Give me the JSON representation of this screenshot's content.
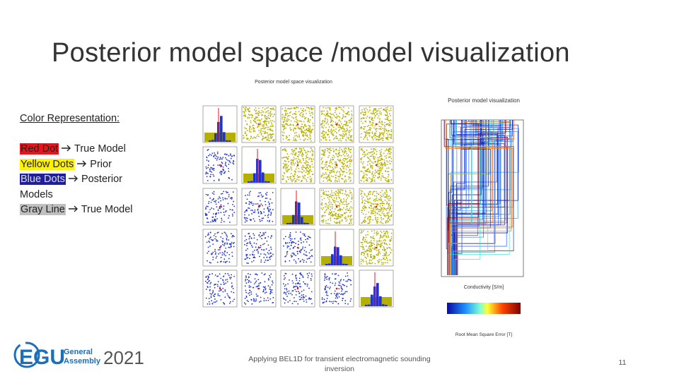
{
  "title": "Posterior model space /model visualization",
  "legend": {
    "heading": "Color Representation:",
    "items": [
      {
        "label": "Red Dot",
        "description": "True Model"
      },
      {
        "label": "Yellow  Dots",
        "description": "Prior"
      },
      {
        "label": "Blue Dots",
        "description": "Posterior Models"
      },
      {
        "label": "Gray Line",
        "description": "True Model"
      }
    ]
  },
  "figures": {
    "corner_title": "Posterior model space visualization",
    "profile_title": "Posterior model visualization",
    "profile_xlabel": "Conductivity [S/m]",
    "colorbar_label": "Root Mean Square Error [T]"
  },
  "footer": {
    "logo_mark": "EGU",
    "logo_line1": "General",
    "logo_line2": "Assembly",
    "logo_year": "2021",
    "text": "Applying BEL1D for transient electromagnetic sounding inversion",
    "page": "11"
  }
}
